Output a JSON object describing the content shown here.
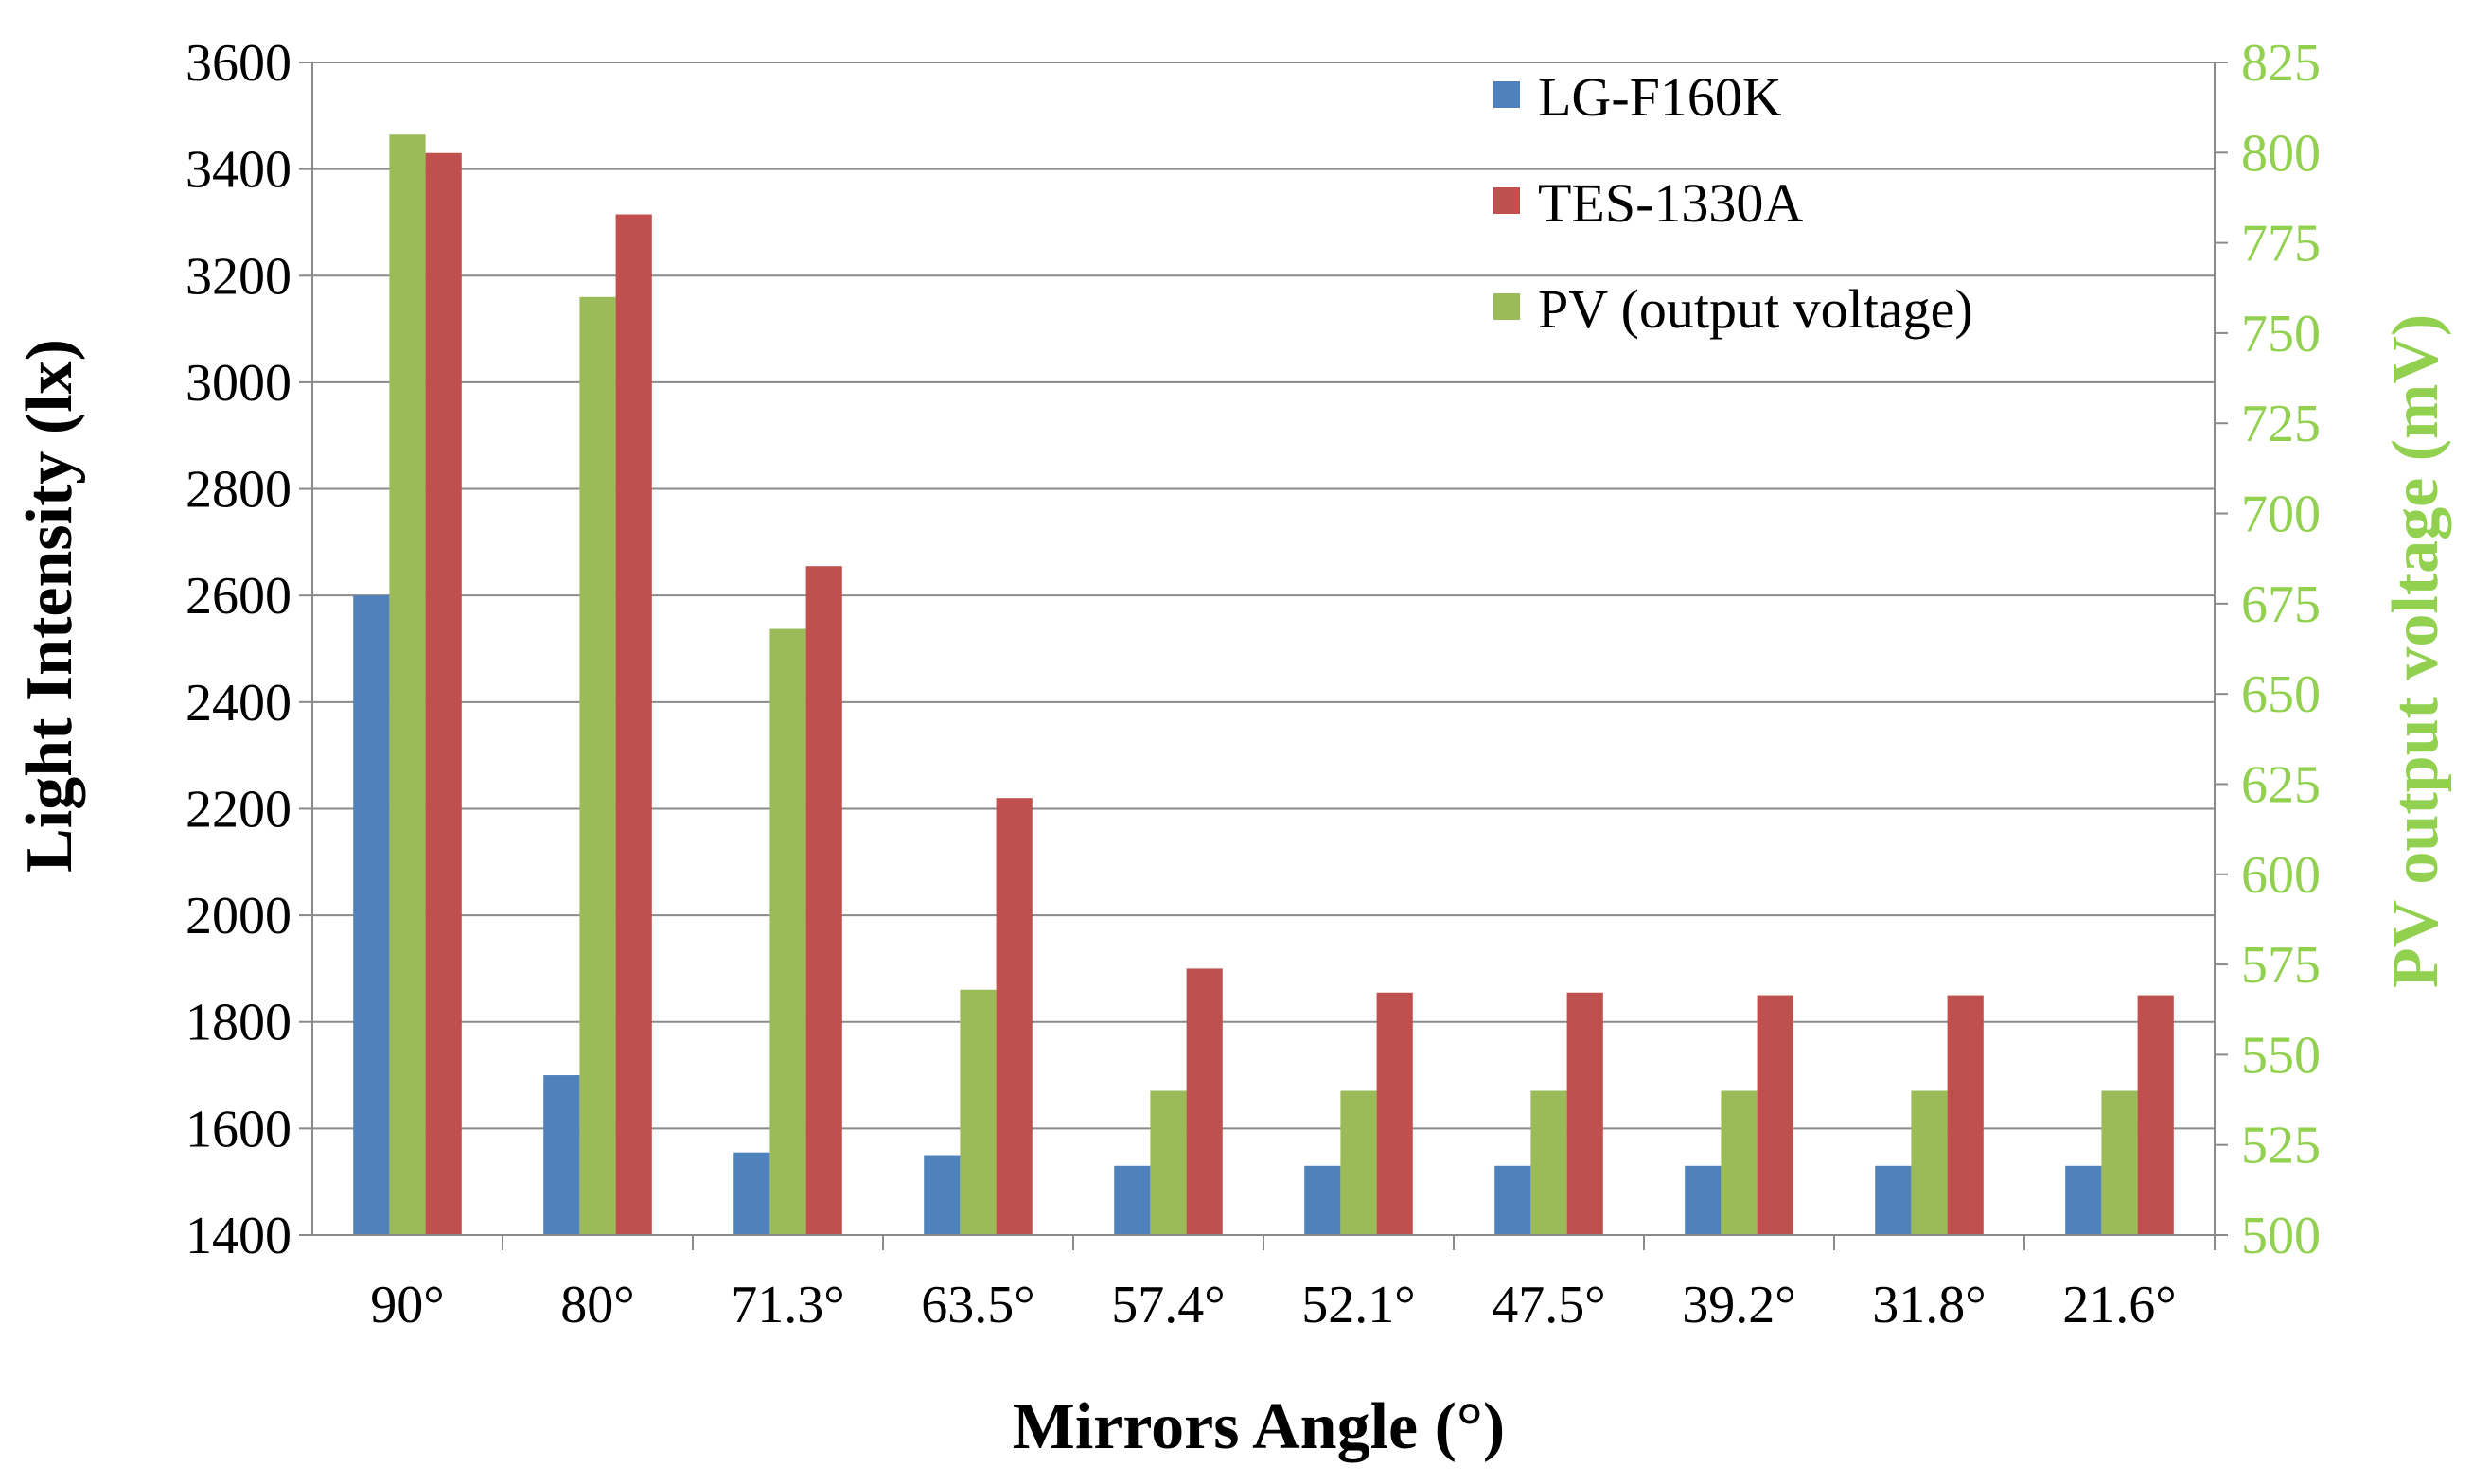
{
  "chart_data": {
    "type": "bar",
    "title": "",
    "xlabel": "Mirrors Angle (°)",
    "ylabel": "Light Intensity (lx)",
    "y2label": "PV output voltage (mV)",
    "categories": [
      "90°",
      "80°",
      "71.3°",
      "63.5°",
      "57.4°",
      "52.1°",
      "47.5°",
      "39.2°",
      "31.8°",
      "21.6°"
    ],
    "ylim": [
      1400,
      3600
    ],
    "yticks": [
      1400,
      1600,
      1800,
      2000,
      2200,
      2400,
      2600,
      2800,
      3000,
      3200,
      3400,
      3600
    ],
    "y2lim": [
      500,
      825
    ],
    "y2ticks": [
      500,
      525,
      550,
      575,
      600,
      625,
      650,
      675,
      700,
      725,
      750,
      775,
      800,
      825
    ],
    "grid": true,
    "legend_position": "top-right",
    "series": [
      {
        "name": "LG-F160K",
        "axis": "left",
        "color": "#4F81BD",
        "values": [
          2600,
          1700,
          1555,
          1550,
          1530,
          1530,
          1530,
          1530,
          1530,
          1530
        ]
      },
      {
        "name": "PV (output voltage)",
        "axis": "right",
        "color": "#9BBB59",
        "values": [
          805,
          760,
          668,
          568,
          540,
          540,
          540,
          540,
          540,
          540
        ]
      },
      {
        "name": "TES-1330A",
        "axis": "left",
        "color": "#C0504D",
        "values": [
          3430,
          3315,
          2655,
          2220,
          1900,
          1855,
          1855,
          1850,
          1850,
          1850
        ]
      }
    ],
    "legend_order": [
      "LG-F160K",
      "TES-1330A",
      "PV (output voltage)"
    ],
    "axis_colors": {
      "left": "#000000",
      "right": "#92D050"
    }
  }
}
